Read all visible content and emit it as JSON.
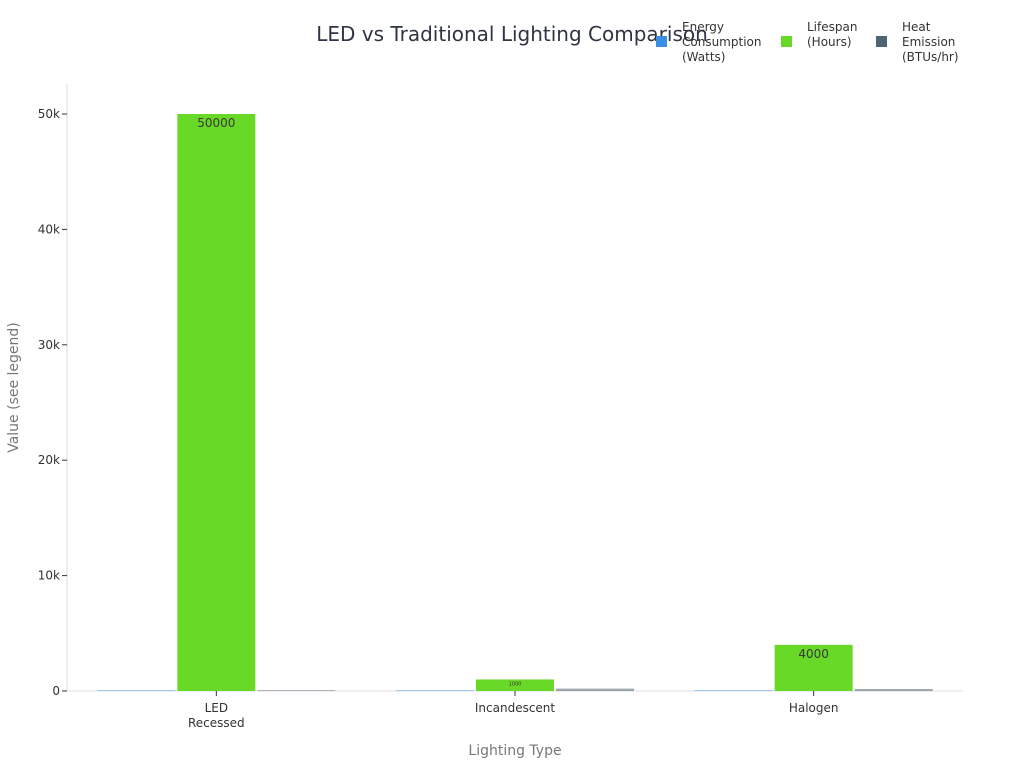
{
  "chart_data": {
    "type": "bar",
    "title": "LED vs Traditional Lighting Comparison",
    "xlabel": "Lighting Type",
    "ylabel": "Value (see legend)",
    "categories": [
      "LED\nRecessed",
      "Incandescent",
      "Halogen"
    ],
    "series": [
      {
        "name": "Energy\nConsumption\n(Watts)",
        "color": "#3a8ee6",
        "values": [
          10,
          60,
          50
        ]
      },
      {
        "name": "Lifespan\n(Hours)",
        "color": "#67d926",
        "values": [
          50000,
          1000,
          4000
        ]
      },
      {
        "name": "Heat\nEmission\n(BTUs/hr)",
        "color": "#4e6472",
        "values": [
          34,
          205,
          171
        ]
      }
    ],
    "data_labels": {
      "series": "Lifespan\n(Hours)",
      "values": [
        "50000",
        "1000",
        "4000"
      ]
    },
    "ylim": [
      0,
      52600
    ],
    "yticks": [
      0,
      10000,
      20000,
      30000,
      40000,
      50000
    ],
    "ytick_labels": [
      "0",
      "10k",
      "20k",
      "30k",
      "40k",
      "50k"
    ],
    "grid": false,
    "legend_position": "top-right"
  }
}
